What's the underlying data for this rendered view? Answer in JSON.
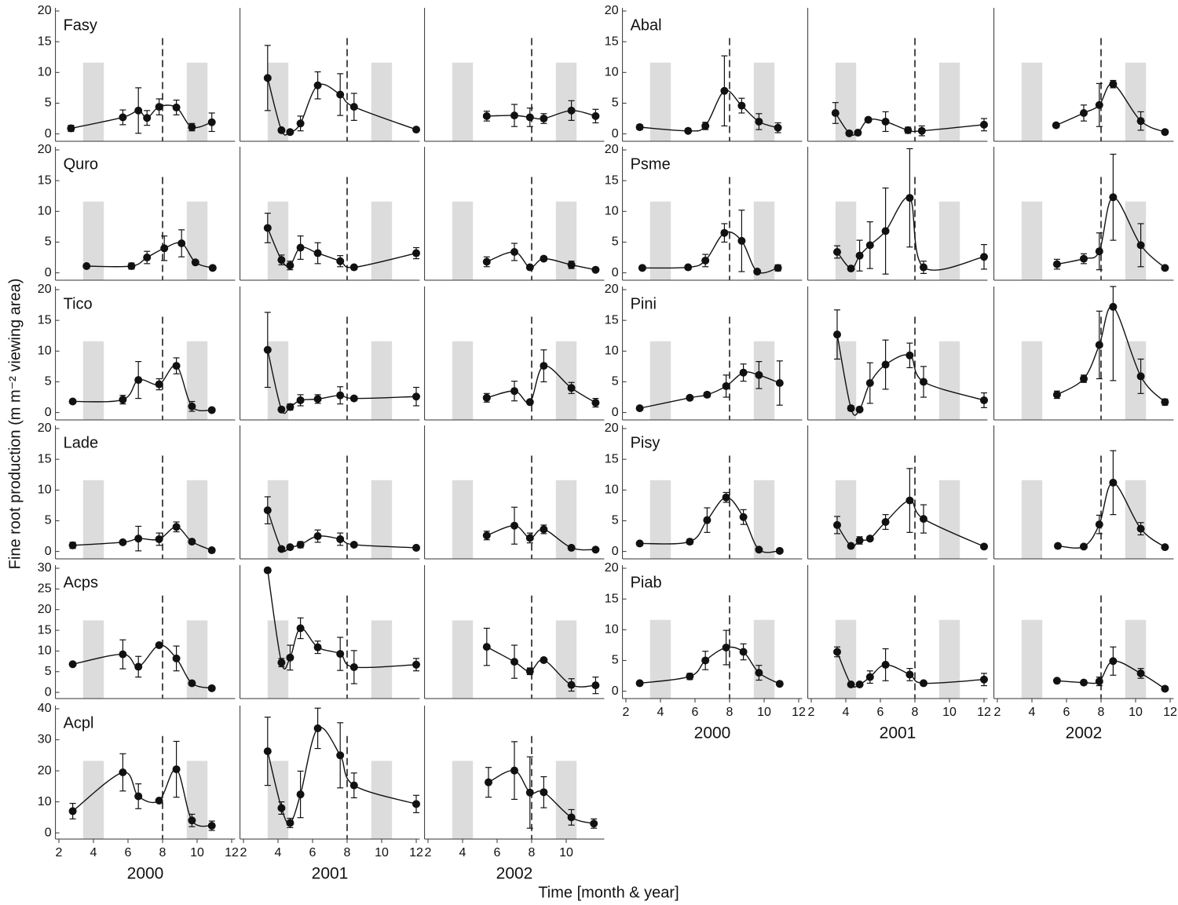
{
  "ylabel": "Fine root production (m m⁻² viewing area)",
  "xlabel": "Time [month & year]",
  "shade_x": [
    [
      3.4,
      4.6
    ],
    [
      9.4,
      10.6
    ]
  ],
  "vline_x": 8,
  "chart_data": [
    {
      "type": "line",
      "title": "Fasy",
      "xlim": [
        1.8,
        12.2
      ],
      "ylim": [
        -1.2,
        20
      ],
      "yticks": [
        0,
        5,
        10,
        15,
        20
      ],
      "x": [
        2.7,
        5.7,
        6.6,
        7.1,
        7.8,
        8.8,
        9.7,
        10.85
      ],
      "values": [
        0.9,
        2.7,
        3.8,
        2.6,
        4.4,
        4.3,
        1.1,
        1.9
      ],
      "errors": [
        0.5,
        1.2,
        3.7,
        1.2,
        1.3,
        1.2,
        0.6,
        1.5
      ]
    },
    {
      "type": "line",
      "xlim": [
        1.8,
        12.2
      ],
      "ylim": [
        -1.2,
        20
      ],
      "x": [
        3.4,
        4.2,
        4.7,
        5.3,
        6.3,
        7.6,
        8.4,
        12
      ],
      "values": [
        9.1,
        0.6,
        0.3,
        1.7,
        7.9,
        6.4,
        4.4,
        0.7
      ],
      "errors": [
        5.3,
        0.3,
        0.3,
        1.2,
        2.2,
        3.4,
        2.2,
        0.2
      ]
    },
    {
      "type": "line",
      "xlim": [
        1.8,
        12.2
      ],
      "ylim": [
        -1.2,
        20
      ],
      "x": [
        5.4,
        7.0,
        7.9,
        8.7,
        10.3,
        11.7
      ],
      "values": [
        2.9,
        3.0,
        2.7,
        2.5,
        3.8,
        2.9
      ],
      "errors": [
        0.8,
        1.8,
        1.5,
        0.8,
        1.6,
        1.1
      ]
    },
    {
      "type": "line",
      "title": "Quro",
      "xlim": [
        1.8,
        12.2
      ],
      "ylim": [
        -1.2,
        20
      ],
      "yticks": [
        0,
        5,
        10,
        15,
        20
      ],
      "x": [
        3.6,
        6.2,
        7.1,
        8.1,
        9.1,
        9.9,
        10.9
      ],
      "values": [
        1.1,
        1.1,
        2.5,
        4.0,
        4.8,
        1.7,
        0.8
      ],
      "errors": [
        0.2,
        0.5,
        1.0,
        2.0,
        2.2,
        0.3,
        0.3
      ]
    },
    {
      "type": "line",
      "xlim": [
        1.8,
        12.2
      ],
      "ylim": [
        -1.2,
        20
      ],
      "x": [
        3.4,
        4.2,
        4.7,
        5.3,
        6.3,
        7.6,
        8.4,
        12
      ],
      "values": [
        7.3,
        2.1,
        1.2,
        4.1,
        3.2,
        1.9,
        0.9,
        3.2
      ],
      "errors": [
        2.4,
        0.8,
        0.7,
        1.9,
        1.7,
        0.9,
        0.2,
        0.9
      ]
    },
    {
      "type": "line",
      "xlim": [
        1.8,
        12.2
      ],
      "ylim": [
        -1.2,
        20
      ],
      "x": [
        5.4,
        7.0,
        7.9,
        8.7,
        10.3,
        11.7
      ],
      "values": [
        1.8,
        3.4,
        0.9,
        2.3,
        1.3,
        0.5
      ],
      "errors": [
        0.8,
        1.4,
        0.3,
        0.3,
        0.6,
        0.2
      ]
    },
    {
      "type": "line",
      "title": "Tico",
      "xlim": [
        1.8,
        12.2
      ],
      "ylim": [
        -1.2,
        20
      ],
      "yticks": [
        0,
        5,
        10,
        15,
        20
      ],
      "x": [
        2.8,
        5.7,
        6.6,
        7.8,
        8.8,
        9.7,
        10.85
      ],
      "values": [
        1.8,
        2.1,
        5.3,
        4.6,
        7.6,
        1.0,
        0.4
      ],
      "errors": [
        0.1,
        0.7,
        3.0,
        0.9,
        1.3,
        0.8,
        0.2
      ]
    },
    {
      "type": "line",
      "xlim": [
        1.8,
        12.2
      ],
      "ylim": [
        -1.2,
        20
      ],
      "x": [
        3.4,
        4.2,
        4.7,
        5.3,
        6.3,
        7.6,
        8.4,
        12
      ],
      "values": [
        10.2,
        0.5,
        0.9,
        2.0,
        2.2,
        2.8,
        2.3,
        2.6
      ],
      "errors": [
        6.1,
        0.3,
        0.5,
        0.9,
        0.7,
        1.4,
        0.2,
        1.5
      ]
    },
    {
      "type": "line",
      "xlim": [
        1.8,
        12.2
      ],
      "ylim": [
        -1.2,
        20
      ],
      "x": [
        5.4,
        7.0,
        7.9,
        8.7,
        10.3,
        11.7
      ],
      "values": [
        2.4,
        3.5,
        1.7,
        7.6,
        4.0,
        1.6
      ],
      "errors": [
        0.7,
        1.6,
        0.3,
        2.6,
        0.9,
        0.7
      ]
    },
    {
      "type": "line",
      "title": "Lade",
      "xlim": [
        1.8,
        12.2
      ],
      "ylim": [
        -1.2,
        20
      ],
      "yticks": [
        0,
        5,
        10,
        15,
        20
      ],
      "x": [
        2.8,
        5.7,
        6.6,
        7.8,
        8.8,
        9.7,
        10.85
      ],
      "values": [
        1.0,
        1.5,
        2.1,
        2.0,
        4.0,
        1.6,
        0.2
      ],
      "errors": [
        0.5,
        0.2,
        2.0,
        1.0,
        0.8,
        0.3,
        0.1
      ]
    },
    {
      "type": "line",
      "xlim": [
        1.8,
        12.2
      ],
      "ylim": [
        -1.2,
        20
      ],
      "x": [
        3.4,
        4.2,
        4.7,
        5.3,
        6.3,
        7.6,
        8.4,
        12
      ],
      "values": [
        6.7,
        0.4,
        0.7,
        1.1,
        2.5,
        2.0,
        1.1,
        0.6
      ],
      "errors": [
        2.2,
        0.2,
        0.3,
        0.5,
        1.0,
        1.0,
        0.2,
        0.2
      ]
    },
    {
      "type": "line",
      "xlim": [
        1.8,
        12.2
      ],
      "ylim": [
        -1.2,
        20
      ],
      "x": [
        5.4,
        7.0,
        7.9,
        8.7,
        10.3,
        11.7
      ],
      "values": [
        2.6,
        4.2,
        2.2,
        3.6,
        0.6,
        0.3
      ],
      "errors": [
        0.7,
        3.0,
        0.8,
        0.7,
        0.2,
        0.2
      ]
    },
    {
      "type": "line",
      "title": "Acps",
      "xlim": [
        1.8,
        12.2
      ],
      "ylim": [
        -1.5,
        30
      ],
      "yticks": [
        0,
        5,
        10,
        15,
        20,
        25,
        30
      ],
      "x": [
        2.8,
        5.7,
        6.6,
        7.8,
        8.8,
        9.7,
        10.85
      ],
      "values": [
        6.8,
        9.2,
        6.2,
        11.4,
        8.2,
        2.2,
        1.0
      ],
      "errors": [
        0.3,
        3.5,
        2.5,
        0.5,
        3.0,
        0.5,
        0.3
      ]
    },
    {
      "type": "line",
      "xlim": [
        1.8,
        12.2
      ],
      "ylim": [
        -1.5,
        30
      ],
      "x": [
        3.4,
        4.2,
        4.7,
        5.3,
        6.3,
        7.6,
        8.4,
        12
      ],
      "values": [
        29.5,
        7.2,
        8.4,
        15.5,
        10.9,
        9.3,
        6.1,
        6.7
      ],
      "errors": [
        0.5,
        1.0,
        3.0,
        2.5,
        1.5,
        4.0,
        4.0,
        1.5
      ]
    },
    {
      "type": "line",
      "xlim": [
        1.8,
        12.2
      ],
      "ylim": [
        -1.5,
        30
      ],
      "x": [
        5.4,
        7.0,
        7.9,
        8.7,
        10.3,
        11.7
      ],
      "values": [
        11.0,
        7.4,
        5.1,
        7.8,
        1.8,
        1.7
      ],
      "errors": [
        4.5,
        4.0,
        0.8,
        0.5,
        1.5,
        2.0
      ]
    },
    {
      "type": "line",
      "title": "Acpl",
      "xlabel": "2000",
      "xlim": [
        1.8,
        12.2
      ],
      "ylim": [
        -2,
        40
      ],
      "yticks": [
        0,
        10,
        20,
        30,
        40
      ],
      "xticks": [
        2,
        4,
        6,
        8,
        10,
        12
      ],
      "x": [
        2.8,
        5.7,
        6.6,
        7.8,
        8.8,
        9.7,
        10.85
      ],
      "values": [
        7.0,
        19.5,
        11.8,
        10.4,
        20.5,
        4.0,
        2.3
      ],
      "errors": [
        2.5,
        6.0,
        4.0,
        0.5,
        9.0,
        2.0,
        1.5
      ]
    },
    {
      "type": "line",
      "xlabel": "2001",
      "xlim": [
        1.8,
        12.2
      ],
      "ylim": [
        -2,
        40
      ],
      "xticks": [
        2,
        4,
        6,
        8,
        10,
        12
      ],
      "x": [
        3.4,
        4.2,
        4.7,
        5.3,
        6.3,
        7.6,
        8.4,
        12
      ],
      "values": [
        26.3,
        8.0,
        3.2,
        12.4,
        33.7,
        25.0,
        15.3,
        9.3
      ],
      "errors": [
        11.0,
        2.0,
        1.5,
        7.5,
        6.5,
        10.5,
        4.0,
        2.8
      ]
    },
    {
      "type": "line",
      "xlabel": "2002",
      "xlim": [
        1.8,
        12.2
      ],
      "ylim": [
        -2,
        40
      ],
      "xticks": [
        2,
        4,
        6,
        8,
        10
      ],
      "x": [
        5.5,
        7.0,
        7.9,
        8.7,
        10.3,
        11.6
      ],
      "values": [
        16.3,
        20.1,
        13.0,
        13.1,
        5.0,
        3.0
      ],
      "errors": [
        4.8,
        9.3,
        11.5,
        5.0,
        2.5,
        1.5
      ]
    },
    {
      "type": "line",
      "title": "Abal",
      "xlim": [
        1.8,
        12.2
      ],
      "ylim": [
        -1.2,
        20
      ],
      "yticks": [
        0,
        5,
        10,
        15,
        20
      ],
      "x": [
        2.8,
        5.6,
        6.6,
        7.7,
        8.7,
        9.7,
        10.8
      ],
      "values": [
        1.1,
        0.5,
        1.3,
        7.0,
        4.6,
        2.0,
        1.0
      ],
      "errors": [
        0.4,
        0.2,
        0.6,
        5.7,
        1.2,
        1.3,
        0.8
      ]
    },
    {
      "type": "line",
      "xlim": [
        1.8,
        12.2
      ],
      "ylim": [
        -1.2,
        20
      ],
      "x": [
        3.4,
        4.2,
        4.7,
        5.3,
        6.3,
        7.6,
        8.4,
        12
      ],
      "values": [
        3.4,
        0.1,
        0.2,
        2.3,
        2.0,
        0.6,
        0.5,
        1.5
      ],
      "errors": [
        1.7,
        0.2,
        0.2,
        0.3,
        1.6,
        0.5,
        0.8,
        1.0
      ]
    },
    {
      "type": "line",
      "xlim": [
        1.8,
        12.2
      ],
      "ylim": [
        -1.2,
        20
      ],
      "x": [
        5.4,
        7.0,
        7.9,
        8.7,
        10.3,
        11.7
      ],
      "values": [
        1.4,
        3.4,
        4.7,
        8.1,
        2.1,
        0.3
      ],
      "errors": [
        0.3,
        1.3,
        3.5,
        0.6,
        1.5,
        0.3
      ]
    },
    {
      "type": "line",
      "title": "Psme",
      "xlim": [
        1.8,
        12.2
      ],
      "ylim": [
        -1.2,
        20
      ],
      "yticks": [
        0,
        5,
        10,
        15,
        20
      ],
      "x": [
        2.95,
        5.6,
        6.6,
        7.7,
        8.7,
        9.6,
        10.8
      ],
      "values": [
        0.8,
        0.9,
        2.0,
        6.5,
        5.2,
        0.2,
        0.8
      ],
      "errors": [
        0.2,
        0.2,
        1.0,
        1.5,
        5.0,
        0.3,
        0.5
      ]
    },
    {
      "type": "line",
      "xlim": [
        1.8,
        12.2
      ],
      "ylim": [
        -1.2,
        20
      ],
      "x": [
        3.5,
        4.3,
        4.8,
        5.4,
        6.3,
        7.7,
        8.5,
        12
      ],
      "values": [
        3.4,
        0.7,
        2.8,
        4.5,
        6.8,
        12.2,
        0.9,
        2.6
      ],
      "errors": [
        1.0,
        0.2,
        2.5,
        3.8,
        7.0,
        8.0,
        1.0,
        2.0
      ]
    },
    {
      "type": "line",
      "xlim": [
        1.8,
        12.2
      ],
      "ylim": [
        -1.2,
        20
      ],
      "x": [
        5.45,
        7.0,
        7.9,
        8.7,
        10.3,
        11.7
      ],
      "values": [
        1.4,
        2.3,
        3.5,
        12.3,
        4.5,
        0.8
      ],
      "errors": [
        0.8,
        0.8,
        3.0,
        7.0,
        3.5,
        0.2
      ]
    },
    {
      "type": "line",
      "title": "Pini",
      "xlim": [
        1.8,
        12.2
      ],
      "ylim": [
        -1.2,
        20
      ],
      "yticks": [
        0,
        5,
        10,
        15,
        20
      ],
      "x": [
        2.8,
        5.7,
        6.7,
        7.8,
        8.8,
        9.7,
        10.9
      ],
      "values": [
        0.7,
        2.4,
        2.9,
        4.3,
        6.5,
        6.1,
        4.8
      ],
      "errors": [
        0.2,
        0.3,
        0.4,
        1.8,
        1.4,
        2.2,
        3.6
      ]
    },
    {
      "type": "line",
      "xlim": [
        1.8,
        12.2
      ],
      "ylim": [
        -1.2,
        20
      ],
      "x": [
        3.5,
        4.3,
        4.8,
        5.4,
        6.3,
        7.7,
        8.5,
        12
      ],
      "values": [
        12.7,
        0.7,
        0.5,
        4.8,
        7.8,
        9.3,
        5.0,
        2.0
      ],
      "errors": [
        4.0,
        0.4,
        0.3,
        3.3,
        4.0,
        2.0,
        2.5,
        1.2
      ]
    },
    {
      "type": "line",
      "xlim": [
        1.8,
        12.2
      ],
      "ylim": [
        -1.2,
        20
      ],
      "x": [
        5.45,
        7.0,
        7.9,
        8.7,
        10.3,
        11.7
      ],
      "values": [
        2.9,
        5.5,
        11.0,
        17.2,
        5.9,
        1.7
      ],
      "errors": [
        0.6,
        0.6,
        5.5,
        12.0,
        2.8,
        0.5
      ]
    },
    {
      "type": "line",
      "title": "Pisy",
      "xlim": [
        1.8,
        12.2
      ],
      "ylim": [
        -1.2,
        20
      ],
      "yticks": [
        0,
        5,
        10,
        15,
        20
      ],
      "x": [
        2.8,
        5.7,
        6.7,
        7.8,
        8.8,
        9.7,
        10.9
      ],
      "values": [
        1.3,
        1.6,
        5.1,
        8.8,
        5.6,
        0.3,
        0.1
      ],
      "errors": [
        0.2,
        0.4,
        2.0,
        0.8,
        1.2,
        0.3,
        0.1
      ]
    },
    {
      "type": "line",
      "xlim": [
        1.8,
        12.2
      ],
      "ylim": [
        -1.2,
        20
      ],
      "x": [
        3.5,
        4.3,
        4.8,
        5.4,
        6.3,
        7.7,
        8.5,
        12
      ],
      "values": [
        4.3,
        0.9,
        1.8,
        2.1,
        4.8,
        8.3,
        5.3,
        0.8
      ],
      "errors": [
        1.4,
        0.3,
        0.6,
        0.3,
        1.2,
        5.2,
        2.3,
        0.3
      ]
    },
    {
      "type": "line",
      "xlim": [
        1.8,
        12.2
      ],
      "ylim": [
        -1.2,
        20
      ],
      "x": [
        5.5,
        7.0,
        7.9,
        8.7,
        10.3,
        11.7
      ],
      "values": [
        0.9,
        0.8,
        4.4,
        11.2,
        3.7,
        0.7
      ],
      "errors": [
        0.1,
        0.1,
        1.5,
        5.2,
        1.0,
        0.2
      ]
    },
    {
      "type": "line",
      "title": "Piab",
      "xlabel": "2000",
      "xlim": [
        1.8,
        12.2
      ],
      "ylim": [
        -1.2,
        20
      ],
      "yticks": [
        0,
        5,
        10,
        15,
        20
      ],
      "xticks": [
        2,
        4,
        6,
        8,
        10,
        12
      ],
      "x": [
        2.8,
        5.7,
        6.6,
        7.8,
        8.8,
        9.7,
        10.9
      ],
      "values": [
        1.3,
        2.4,
        5.0,
        7.1,
        6.4,
        3.0,
        1.2
      ],
      "errors": [
        0.2,
        0.5,
        1.5,
        2.8,
        1.3,
        1.2,
        0.2
      ]
    },
    {
      "type": "line",
      "xlabel": "2001",
      "xlim": [
        1.8,
        12.2
      ],
      "ylim": [
        -1.2,
        20
      ],
      "xticks": [
        2,
        4,
        6,
        8,
        10,
        12
      ],
      "x": [
        3.5,
        4.3,
        4.8,
        5.4,
        6.3,
        7.7,
        8.5,
        12
      ],
      "values": [
        6.4,
        1.1,
        1.1,
        2.3,
        4.3,
        2.7,
        1.3,
        1.9
      ],
      "errors": [
        0.8,
        0.2,
        0.3,
        1.0,
        2.6,
        1.0,
        0.2,
        1.0
      ]
    },
    {
      "type": "line",
      "xlabel": "2002",
      "xlim": [
        1.8,
        12.2
      ],
      "ylim": [
        -1.2,
        20
      ],
      "xticks": [
        2,
        4,
        6,
        8,
        10,
        12
      ],
      "x": [
        5.45,
        7.0,
        7.9,
        8.7,
        10.3,
        11.7
      ],
      "values": [
        1.7,
        1.4,
        1.6,
        4.9,
        2.9,
        0.4
      ],
      "errors": [
        0.2,
        0.2,
        0.7,
        2.3,
        0.8,
        0.2
      ]
    }
  ]
}
